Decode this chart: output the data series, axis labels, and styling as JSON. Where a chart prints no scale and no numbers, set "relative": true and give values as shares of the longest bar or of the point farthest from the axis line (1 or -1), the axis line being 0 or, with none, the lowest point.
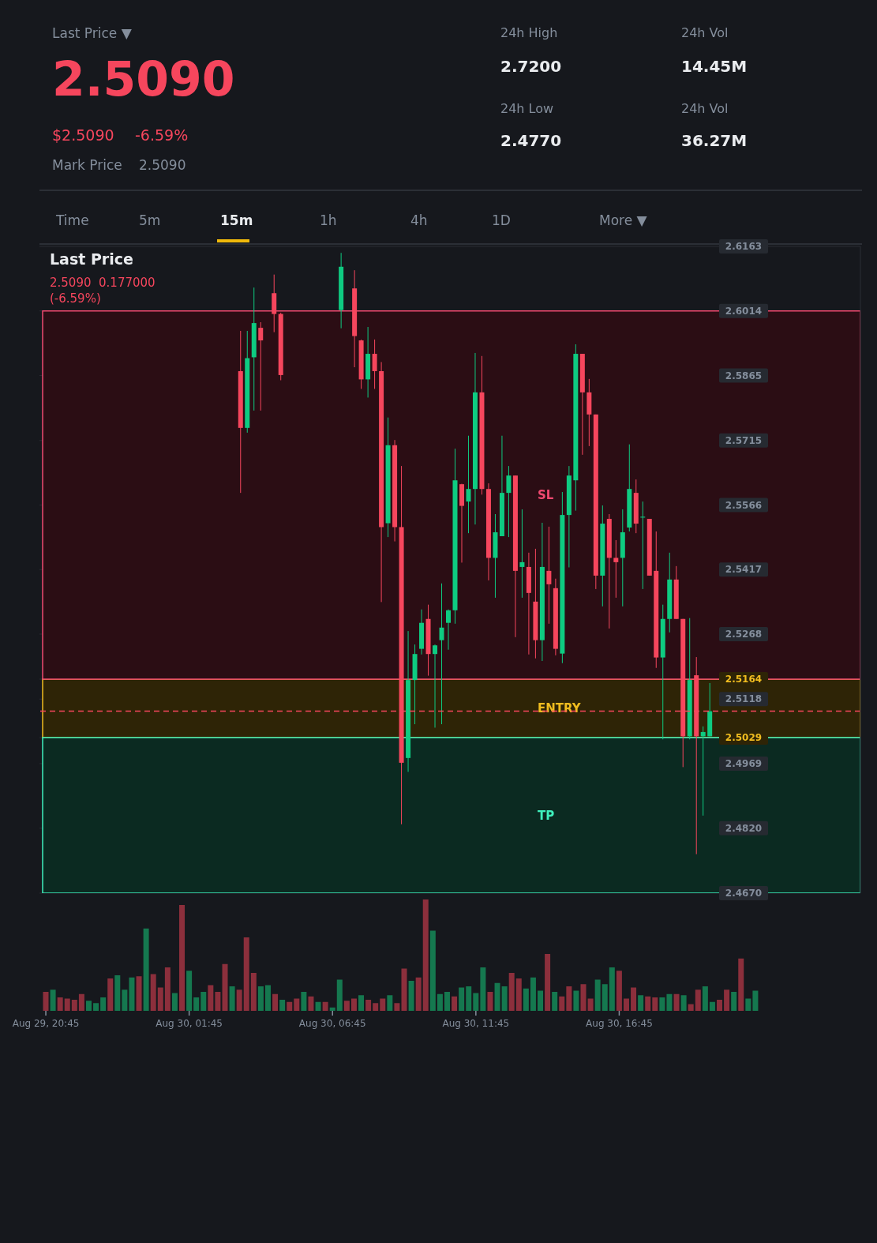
{
  "chart_data": [
    {
      "type": "other",
      "annotations": [
        "Last Price ▼",
        "2.5090",
        "$2.5090",
        "-6.59%",
        "Mark Price",
        "2.5090",
        "24h High",
        "2.7200",
        "24h Low",
        "2.4770",
        "24h Vol",
        "14.45M",
        "24h Vol",
        "36.27M",
        "Time",
        "5m",
        "15m",
        "1h",
        "4h",
        "1D",
        "More ▼"
      ]
    },
    {
      "type": "candlestick",
      "title": "Last Price",
      "subtitle": "2.5090  0.177000 (-6.59%)",
      "categories": [
        null,
        null,
        null,
        null,
        null,
        null,
        null,
        null,
        null,
        null,
        null,
        null,
        null,
        null,
        null,
        null,
        null,
        null,
        null,
        null,
        null,
        null,
        null,
        null,
        null,
        null,
        null,
        null,
        null,
        null,
        null,
        null,
        null,
        null,
        null,
        null,
        null,
        null,
        null,
        null,
        null,
        null,
        null,
        null,
        null,
        null,
        null,
        null,
        null,
        null,
        null,
        null,
        null,
        null,
        null,
        null,
        null,
        null,
        null,
        null,
        null,
        null,
        null,
        null,
        null,
        null,
        null,
        null,
        null,
        null,
        null,
        null,
        null,
        null,
        null,
        null,
        null,
        null,
        null,
        null,
        null,
        null,
        null,
        null,
        null,
        null,
        null,
        null,
        null,
        null,
        null,
        null,
        null,
        null,
        null,
        null,
        null,
        null,
        null,
        null,
        null,
        null,
        null,
        null,
        null,
        null,
        null,
        null,
        null,
        null,
        null,
        null,
        null,
        null,
        null,
        null,
        null,
        null,
        null,
        null,
        null,
        null
      ],
      "ohlc": [
        null,
        null,
        null,
        null,
        null,
        null,
        null,
        null,
        null,
        null,
        null,
        null,
        null,
        null,
        null,
        null,
        null,
        null,
        null,
        null,
        null,
        null,
        null,
        null,
        null,
        null,
        null,
        null,
        null,
        [
          2.5875,
          2.5968,
          2.5594,
          2.5744
        ],
        [
          2.5744,
          2.5968,
          2.5733,
          2.5905
        ],
        [
          2.5907,
          2.6068,
          2.5784,
          2.5986
        ],
        [
          2.5975,
          2.5988,
          2.5784,
          2.5946
        ],
        null,
        [
          2.6055,
          2.6098,
          2.5965,
          2.6007
        ],
        [
          2.6007,
          2.601,
          2.5854,
          2.5866
        ],
        null,
        null,
        null,
        null,
        null,
        null,
        null,
        null,
        [
          2.6016,
          2.6148,
          2.5974,
          2.6116
        ],
        null,
        [
          2.6066,
          2.6108,
          2.5884,
          2.5956
        ],
        [
          2.5946,
          2.5948,
          2.5834,
          2.5856
        ],
        [
          2.5856,
          2.5977,
          2.5814,
          2.5915
        ],
        [
          2.5915,
          2.5948,
          2.5834,
          2.5875
        ],
        [
          2.5875,
          2.5896,
          2.5342,
          2.5515
        ],
        [
          2.5524,
          2.5768,
          2.5492,
          2.5704
        ],
        [
          2.5704,
          2.5716,
          2.5482,
          2.5515
        ],
        [
          2.5515,
          2.5656,
          2.4829,
          2.4971
        ],
        [
          2.4982,
          2.5275,
          2.495,
          2.5162
        ],
        [
          2.5162,
          2.5244,
          2.506,
          2.5222
        ],
        [
          2.5234,
          2.5325,
          2.5221,
          2.5294
        ],
        [
          2.5303,
          2.5336,
          2.5172,
          2.5222
        ],
        [
          2.5222,
          2.5244,
          2.5052,
          2.5242
        ],
        [
          2.5254,
          2.5385,
          2.506,
          2.5283
        ],
        [
          2.5294,
          2.5325,
          2.5232,
          2.5323
        ],
        [
          2.5323,
          2.5696,
          2.5292,
          2.5623
        ],
        [
          2.5614,
          2.5615,
          2.5433,
          2.5564
        ],
        [
          2.5574,
          2.5726,
          2.5501,
          2.5603
        ],
        [
          2.5603,
          2.5917,
          2.5521,
          2.5826
        ],
        [
          2.5826,
          2.591,
          2.559,
          2.5603
        ],
        [
          2.5603,
          2.5616,
          2.5392,
          2.5444
        ],
        [
          2.5444,
          2.5545,
          2.5352,
          2.5503
        ],
        [
          2.5494,
          2.5726,
          2.5494,
          2.5594
        ],
        [
          2.5594,
          2.5656,
          2.5492,
          2.5634
        ],
        [
          2.5634,
          2.5634,
          2.5261,
          2.5414
        ],
        [
          2.5423,
          2.5556,
          2.5352,
          2.5434
        ],
        [
          2.5423,
          2.5456,
          2.5221,
          2.5363
        ],
        [
          2.5343,
          2.5465,
          2.5212,
          2.5254
        ],
        [
          2.5254,
          2.5525,
          2.5206,
          2.5423
        ],
        [
          2.5414,
          2.5516,
          2.5292,
          2.5383
        ],
        [
          2.5374,
          2.5396,
          2.5219,
          2.5234
        ],
        [
          2.5223,
          2.5596,
          2.5201,
          2.5543
        ],
        [
          2.5543,
          2.5656,
          2.5422,
          2.5634
        ],
        [
          2.5623,
          2.5937,
          2.5553,
          2.5915
        ],
        [
          2.5915,
          2.5915,
          2.5682,
          2.5826
        ],
        [
          2.5826,
          2.5857,
          2.5702,
          2.5775
        ],
        [
          2.5775,
          2.5775,
          2.5372,
          2.5403
        ],
        [
          2.5403,
          2.5565,
          2.5332,
          2.5523
        ],
        [
          2.5534,
          2.5545,
          2.5281,
          2.5444
        ],
        [
          2.5444,
          2.5485,
          2.5352,
          2.5434
        ],
        [
          2.5444,
          2.5556,
          2.5332,
          2.5503
        ],
        [
          2.5514,
          2.5706,
          2.5505,
          2.5603
        ],
        [
          2.5594,
          2.5625,
          2.5501,
          2.5523
        ],
        [
          2.5537,
          2.5574,
          2.5372,
          2.5539
        ],
        [
          2.5534,
          2.5534,
          2.5403,
          2.5403
        ],
        [
          2.5414,
          2.5505,
          2.519,
          2.5214
        ],
        [
          2.5214,
          2.5336,
          2.5025,
          2.5303
        ],
        [
          2.5303,
          2.5456,
          2.5272,
          2.5394
        ],
        [
          2.5394,
          2.5425,
          2.5303,
          2.5303
        ],
        [
          2.5303,
          2.5303,
          2.4961,
          2.5032
        ],
        [
          2.5032,
          2.5305,
          2.5025,
          2.5162
        ],
        [
          2.5173,
          2.5215,
          2.476,
          2.5032
        ],
        [
          2.5032,
          2.5055,
          2.4849,
          2.5042
        ],
        [
          2.5032,
          2.5155,
          2.5032,
          2.509
        ],
        null,
        null,
        null,
        null,
        null,
        null,
        null,
        null,
        null,
        null,
        null,
        null,
        null,
        null,
        null,
        null,
        null,
        null,
        null,
        null,
        null,
        null
      ],
      "ylim": [
        2.467,
        2.6163
      ],
      "yticks": [
        2.6163,
        2.6014,
        2.5865,
        2.5715,
        2.5566,
        2.5417,
        2.5268,
        2.5164,
        2.5118,
        2.5029,
        2.4969,
        {
          "value": 2.482,
          "label": "2.4820"
        },
        {
          "value": 2.467,
          "label": "2.4670"
        }
      ],
      "grid": "y",
      "tick_labels": "y",
      "bands": [
        {
          "axis": "y",
          "from": 2.5029,
          "to": 2.5164,
          "label": "ENTRY",
          "color": "#2e2406"
        },
        {
          "axis": "y",
          "from": 2.5164,
          "to": 2.6014,
          "label": "SL",
          "color": "#2b0d14"
        },
        {
          "axis": "y",
          "from": 2.467,
          "to": 2.5029,
          "label": "TP",
          "color": "#0b2a21"
        }
      ],
      "ref_lines": [
        {
          "axis": "y",
          "value": 2.509,
          "color": "#f6465d",
          "line_style": "dashed"
        }
      ]
    },
    {
      "type": "bar",
      "relative": true,
      "tick_labels": "x",
      "categories": [
        "Aug 29, 20:45",
        null,
        null,
        null,
        null,
        null,
        null,
        null,
        null,
        null,
        null,
        null,
        null,
        null,
        null,
        null,
        null,
        null,
        null,
        null,
        "Aug 30, 01:45",
        null,
        null,
        null,
        null,
        null,
        null,
        null,
        null,
        null,
        null,
        null,
        null,
        null,
        null,
        null,
        null,
        null,
        null,
        null,
        "Aug 30, 06:45",
        null,
        null,
        null,
        null,
        null,
        null,
        null,
        null,
        null,
        null,
        null,
        null,
        null,
        null,
        null,
        null,
        null,
        null,
        null,
        "Aug 30, 11:45",
        null,
        null,
        null,
        null,
        null,
        null,
        null,
        null,
        null,
        null,
        null,
        null,
        null,
        null,
        null,
        null,
        null,
        null,
        null,
        "Aug 30, 16:45",
        null,
        null,
        null,
        null,
        null,
        null,
        null,
        null,
        null,
        null,
        null,
        null,
        null,
        null,
        null,
        null,
        null,
        null,
        null
      ],
      "values": [
        0.17,
        0.19,
        0.12,
        0.11,
        0.1,
        0.15,
        0.09,
        0.07,
        0.12,
        0.29,
        0.32,
        0.19,
        0.3,
        0.31,
        0.74,
        0.33,
        0.21,
        0.39,
        0.16,
        0.95,
        0.36,
        0.12,
        0.17,
        0.23,
        0.17,
        0.42,
        0.22,
        0.19,
        0.66,
        0.34,
        0.22,
        0.23,
        0.15,
        0.1,
        0.08,
        0.11,
        0.17,
        0.13,
        0.08,
        0.08,
        0.03,
        0.28,
        0.09,
        0.11,
        0.14,
        0.1,
        0.07,
        0.11,
        0.14,
        0.07,
        0.38,
        0.27,
        0.3,
        1,
        0.72,
        0.15,
        0.17,
        0.13,
        0.21,
        0.22,
        0.16,
        0.39,
        0.17,
        0.25,
        0.22,
        0.34,
        0.29,
        0.2,
        0.3,
        0.18,
        0.51,
        0.17,
        0.13,
        0.22,
        0.18,
        0.24,
        0.11,
        0.28,
        0.24,
        0.39,
        0.36,
        0.11,
        0.21,
        0.14,
        0.13,
        0.12,
        0.12,
        0.15,
        0.15,
        0.14,
        0.06,
        0.19,
        0.22,
        0.08,
        0.1,
        0.19,
        0.17,
        0.47,
        0.11,
        0.18
      ],
      "colors": [
        "#8c2f3c",
        "#15784f",
        "#8c2f3c",
        "#8c2f3c",
        "#8c2f3c",
        "#8c2f3c",
        "#15784f",
        "#15784f",
        "#15784f",
        "#8c2f3c",
        "#15784f",
        "#15784f",
        "#15784f",
        "#8c2f3c",
        "#15784f",
        "#8c2f3c",
        "#8c2f3c",
        "#8c2f3c",
        "#15784f",
        "#8c2f3c",
        "#15784f",
        "#15784f",
        "#15784f",
        "#8c2f3c",
        "#8c2f3c",
        "#8c2f3c",
        "#15784f",
        "#8c2f3c",
        "#8c2f3c",
        "#8c2f3c",
        "#15784f",
        "#15784f",
        "#8c2f3c",
        "#15784f",
        "#8c2f3c",
        "#8c2f3c",
        "#15784f",
        "#8c2f3c",
        "#15784f",
        "#8c2f3c",
        "#15784f",
        "#15784f",
        "#8c2f3c",
        "#8c2f3c",
        "#15784f",
        "#8c2f3c",
        "#8c2f3c",
        "#8c2f3c",
        "#15784f",
        "#8c2f3c",
        "#8c2f3c",
        "#15784f",
        "#8c2f3c",
        "#8c2f3c",
        "#15784f",
        "#15784f",
        "#15784f",
        "#8c2f3c",
        "#15784f",
        "#15784f",
        "#15784f",
        "#15784f",
        "#8c2f3c",
        "#15784f",
        "#15784f",
        "#8c2f3c",
        "#8c2f3c",
        "#15784f",
        "#15784f",
        "#15784f",
        "#8c2f3c",
        "#15784f",
        "#8c2f3c",
        "#8c2f3c",
        "#15784f",
        "#8c2f3c",
        "#8c2f3c",
        "#15784f",
        "#15784f",
        "#15784f",
        "#8c2f3c",
        "#8c2f3c",
        "#8c2f3c",
        "#15784f",
        "#8c2f3c",
        "#8c2f3c",
        "#15784f",
        "#15784f",
        "#8c2f3c",
        "#15784f",
        "#8c2f3c",
        "#8c2f3c",
        "#15784f",
        "#15784f",
        "#8c2f3c",
        "#8c2f3c",
        "#15784f",
        "#8c2f3c",
        "#15784f",
        "#15784f"
      ]
    }
  ]
}
